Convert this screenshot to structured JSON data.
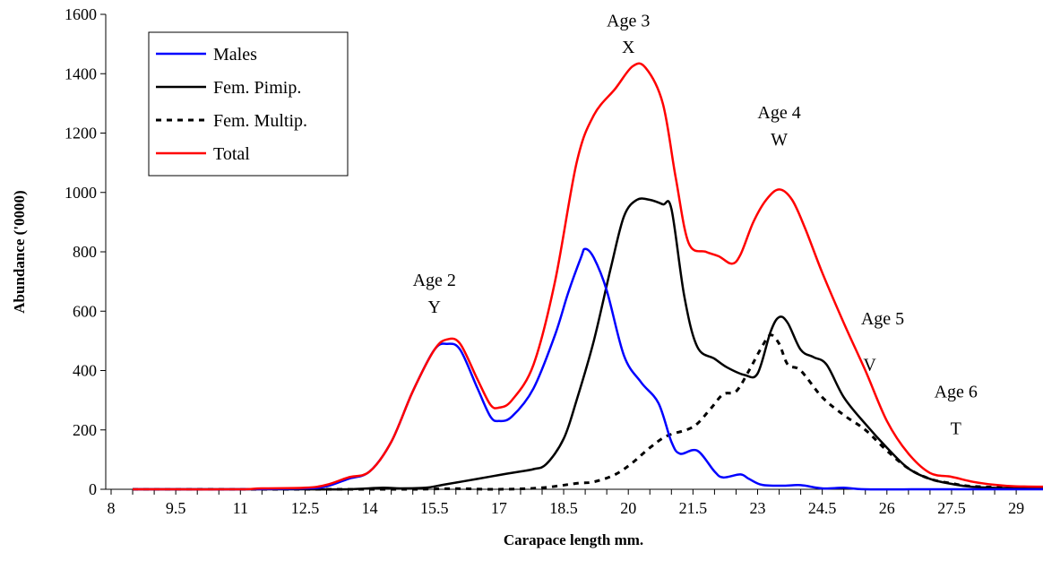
{
  "chart_data": {
    "type": "line",
    "title": "",
    "xlabel": "Carapace length mm.",
    "ylabel": "Abundance ('0000)",
    "xlim": [
      8,
      30
    ],
    "ylim": [
      0,
      1600
    ],
    "yticks": [
      0,
      200,
      400,
      600,
      800,
      1000,
      1200,
      1400,
      1600
    ],
    "xticks": [
      8,
      9.5,
      11,
      12.5,
      14,
      15.5,
      17,
      18.5,
      20,
      21.5,
      23,
      24.5,
      26,
      27.5,
      29
    ],
    "x_minor_step": 0.5,
    "grid": false,
    "legend": {
      "position": "top-left",
      "boxed": true
    },
    "series": [
      {
        "name": "Males",
        "color": "#0000FF",
        "dash": "solid",
        "points": [
          [
            8.5,
            0
          ],
          [
            9.5,
            0
          ],
          [
            11,
            0
          ],
          [
            12.5,
            3
          ],
          [
            13,
            10
          ],
          [
            13.5,
            35
          ],
          [
            14,
            60
          ],
          [
            14.5,
            160
          ],
          [
            15,
            330
          ],
          [
            15.5,
            470
          ],
          [
            15.8,
            490
          ],
          [
            16.1,
            470
          ],
          [
            16.5,
            340
          ],
          [
            16.8,
            245
          ],
          [
            17,
            230
          ],
          [
            17.3,
            245
          ],
          [
            17.8,
            340
          ],
          [
            18.3,
            520
          ],
          [
            18.6,
            660
          ],
          [
            18.9,
            780
          ],
          [
            19,
            810
          ],
          [
            19.2,
            780
          ],
          [
            19.5,
            670
          ],
          [
            19.9,
            450
          ],
          [
            20.3,
            360
          ],
          [
            20.7,
            290
          ],
          [
            21,
            160
          ],
          [
            21.2,
            120
          ],
          [
            21.6,
            130
          ],
          [
            22,
            60
          ],
          [
            22.2,
            40
          ],
          [
            22.6,
            50
          ],
          [
            22.8,
            35
          ],
          [
            23.1,
            15
          ],
          [
            23.6,
            12
          ],
          [
            24,
            14
          ],
          [
            24.5,
            3
          ],
          [
            25,
            5
          ],
          [
            25.5,
            0
          ],
          [
            27,
            0
          ],
          [
            29,
            0
          ],
          [
            30,
            0
          ]
        ]
      },
      {
        "name": "Fem. Pimip.",
        "color": "#000000",
        "dash": "solid",
        "points": [
          [
            8.5,
            0
          ],
          [
            9.5,
            0
          ],
          [
            11,
            0
          ],
          [
            12.5,
            0
          ],
          [
            13.5,
            0
          ],
          [
            14.3,
            5
          ],
          [
            14.7,
            3
          ],
          [
            15.3,
            5
          ],
          [
            15.7,
            15
          ],
          [
            16.5,
            35
          ],
          [
            17,
            48
          ],
          [
            17.5,
            60
          ],
          [
            17.8,
            68
          ],
          [
            18.1,
            85
          ],
          [
            18.5,
            170
          ],
          [
            18.8,
            300
          ],
          [
            19.2,
            500
          ],
          [
            19.6,
            750
          ],
          [
            19.9,
            920
          ],
          [
            20.2,
            975
          ],
          [
            20.5,
            975
          ],
          [
            20.8,
            960
          ],
          [
            21,
            945
          ],
          [
            21.3,
            650
          ],
          [
            21.6,
            480
          ],
          [
            22,
            440
          ],
          [
            22.3,
            410
          ],
          [
            22.7,
            385
          ],
          [
            23,
            390
          ],
          [
            23.3,
            530
          ],
          [
            23.5,
            580
          ],
          [
            23.7,
            560
          ],
          [
            24,
            470
          ],
          [
            24.3,
            445
          ],
          [
            24.6,
            420
          ],
          [
            25,
            310
          ],
          [
            25.5,
            220
          ],
          [
            26,
            140
          ],
          [
            26.5,
            70
          ],
          [
            27,
            35
          ],
          [
            27.5,
            18
          ],
          [
            28,
            8
          ],
          [
            29,
            3
          ],
          [
            30,
            2
          ]
        ]
      },
      {
        "name": "Fem. Multip.",
        "color": "#000000",
        "dash": "dashed",
        "points": [
          [
            8.5,
            0
          ],
          [
            9.5,
            0
          ],
          [
            11,
            0
          ],
          [
            12.5,
            0
          ],
          [
            13,
            0
          ],
          [
            14,
            0
          ],
          [
            15,
            0
          ],
          [
            16,
            2
          ],
          [
            17,
            0
          ],
          [
            18,
            5
          ],
          [
            18.8,
            20
          ],
          [
            19.2,
            25
          ],
          [
            19.7,
            50
          ],
          [
            20.1,
            90
          ],
          [
            20.5,
            140
          ],
          [
            20.9,
            180
          ],
          [
            21.5,
            210
          ],
          [
            21.9,
            270
          ],
          [
            22.2,
            320
          ],
          [
            22.5,
            330
          ],
          [
            22.8,
            400
          ],
          [
            23.1,
            480
          ],
          [
            23.3,
            520
          ],
          [
            23.5,
            490
          ],
          [
            23.7,
            420
          ],
          [
            24,
            400
          ],
          [
            24.5,
            310
          ],
          [
            25,
            250
          ],
          [
            25.5,
            200
          ],
          [
            26,
            130
          ],
          [
            26.5,
            70
          ],
          [
            27,
            35
          ],
          [
            27.5,
            20
          ],
          [
            28,
            10
          ],
          [
            29,
            5
          ],
          [
            30,
            5
          ]
        ]
      },
      {
        "name": "Total",
        "color": "#FF0000",
        "dash": "solid",
        "points": [
          [
            8.5,
            0
          ],
          [
            9.5,
            0
          ],
          [
            11,
            0
          ],
          [
            11.5,
            3
          ],
          [
            12.5,
            5
          ],
          [
            13,
            15
          ],
          [
            13.5,
            40
          ],
          [
            14,
            60
          ],
          [
            14.5,
            160
          ],
          [
            15,
            330
          ],
          [
            15.5,
            470
          ],
          [
            15.8,
            505
          ],
          [
            16.1,
            490
          ],
          [
            16.5,
            370
          ],
          [
            16.8,
            285
          ],
          [
            17,
            275
          ],
          [
            17.3,
            300
          ],
          [
            17.8,
            420
          ],
          [
            18.3,
            700
          ],
          [
            18.8,
            1100
          ],
          [
            19.2,
            1260
          ],
          [
            19.7,
            1350
          ],
          [
            20.1,
            1425
          ],
          [
            20.4,
            1420
          ],
          [
            20.8,
            1300
          ],
          [
            21.1,
            1050
          ],
          [
            21.4,
            830
          ],
          [
            21.8,
            800
          ],
          [
            22.1,
            785
          ],
          [
            22.4,
            760
          ],
          [
            22.6,
            790
          ],
          [
            22.9,
            900
          ],
          [
            23.2,
            975
          ],
          [
            23.5,
            1010
          ],
          [
            23.8,
            975
          ],
          [
            24.1,
            880
          ],
          [
            24.5,
            730
          ],
          [
            25,
            560
          ],
          [
            25.5,
            400
          ],
          [
            26,
            230
          ],
          [
            26.5,
            120
          ],
          [
            27,
            55
          ],
          [
            27.5,
            42
          ],
          [
            28,
            25
          ],
          [
            28.5,
            15
          ],
          [
            29,
            10
          ],
          [
            30,
            8
          ]
        ]
      }
    ],
    "annotations": [
      {
        "text": "Age  2",
        "x": 15.5,
        "y": 685
      },
      {
        "text": "Y",
        "x": 15.5,
        "y": 595
      },
      {
        "text": "Age 3",
        "x": 20,
        "y": 1560
      },
      {
        "text": "X",
        "x": 20,
        "y": 1470
      },
      {
        "text": "Age 4",
        "x": 23.5,
        "y": 1250
      },
      {
        "text": "W",
        "x": 23.5,
        "y": 1160
      },
      {
        "text": "Age 5",
        "x": 25.9,
        "y": 555
      },
      {
        "text": "V",
        "x": 25.6,
        "y": 400
      },
      {
        "text": "Age 6",
        "x": 27.6,
        "y": 310
      },
      {
        "text": "T",
        "x": 27.6,
        "y": 185
      }
    ]
  }
}
